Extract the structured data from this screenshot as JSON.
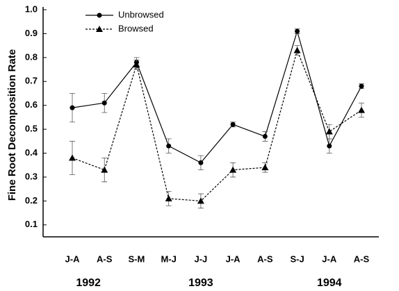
{
  "chart_data": {
    "type": "line",
    "y_label": "Fine Root Decomposition Rate",
    "categories": [
      "J-A",
      "A-S",
      "S-M",
      "M-J",
      "J-J",
      "J-A",
      "A-S",
      "S-J",
      "J-A",
      "A-S"
    ],
    "years": [
      "1992",
      "1993",
      "1994"
    ],
    "series": [
      {
        "name": "Unbrowsed",
        "color": "#000",
        "marker": "circle",
        "dashed": false,
        "values": [
          0.59,
          0.61,
          0.78,
          0.43,
          0.36,
          0.52,
          0.47,
          0.91,
          0.43,
          0.68
        ],
        "errors": [
          0.06,
          0.04,
          0.02,
          0.03,
          0.03,
          0.01,
          0.02,
          0.01,
          0.03,
          0.01
        ]
      },
      {
        "name": "Browsed",
        "color": "#000",
        "marker": "triangle",
        "dashed": true,
        "values": [
          0.38,
          0.33,
          0.77,
          0.21,
          0.2,
          0.33,
          0.34,
          0.83,
          0.49,
          0.58
        ],
        "errors": [
          0.07,
          0.05,
          0.02,
          0.03,
          0.03,
          0.03,
          0.02,
          0.02,
          0.03,
          0.03
        ]
      }
    ],
    "ylim": [
      0.05,
      1
    ],
    "yticks": [
      0.1,
      0.2,
      0.3,
      0.4,
      0.5,
      0.6,
      0.7,
      0.8,
      0.9,
      {
        "value": 1,
        "label": "1.0"
      }
    ],
    "grid": false
  }
}
